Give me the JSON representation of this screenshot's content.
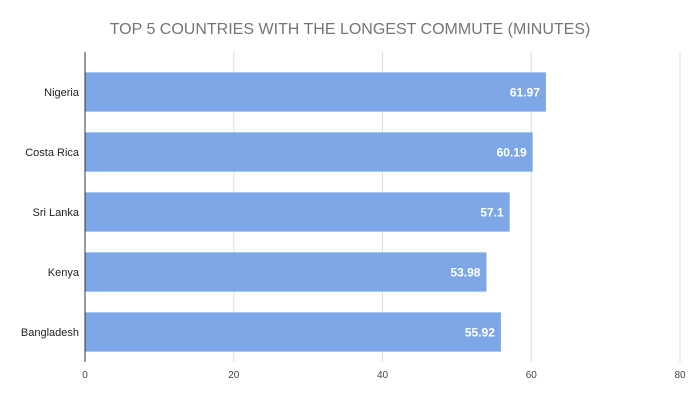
{
  "chart_data": {
    "type": "bar",
    "orientation": "horizontal",
    "title": "TOP 5 COUNTRIES WITH THE LONGEST COMMUTE (MINUTES)",
    "categories": [
      "Nigeria",
      "Costa Rica",
      "Sri Lanka",
      "Kenya",
      "Bangladesh"
    ],
    "values": [
      61.97,
      60.19,
      57.1,
      53.98,
      55.92
    ],
    "value_labels": [
      "61.97",
      "60.19",
      "57.1",
      "53.98",
      "55.92"
    ],
    "xlabel": "",
    "ylabel": "",
    "xlim": [
      0,
      80
    ],
    "x_ticks": [
      0,
      20,
      40,
      60,
      80
    ],
    "x_tick_labels": [
      "0",
      "20",
      "40",
      "60",
      "80"
    ],
    "grid": true,
    "legend": "none",
    "colors": {
      "bar": "#7EA7E8",
      "grid": "#DDDDDD",
      "axis": "#333333"
    }
  }
}
